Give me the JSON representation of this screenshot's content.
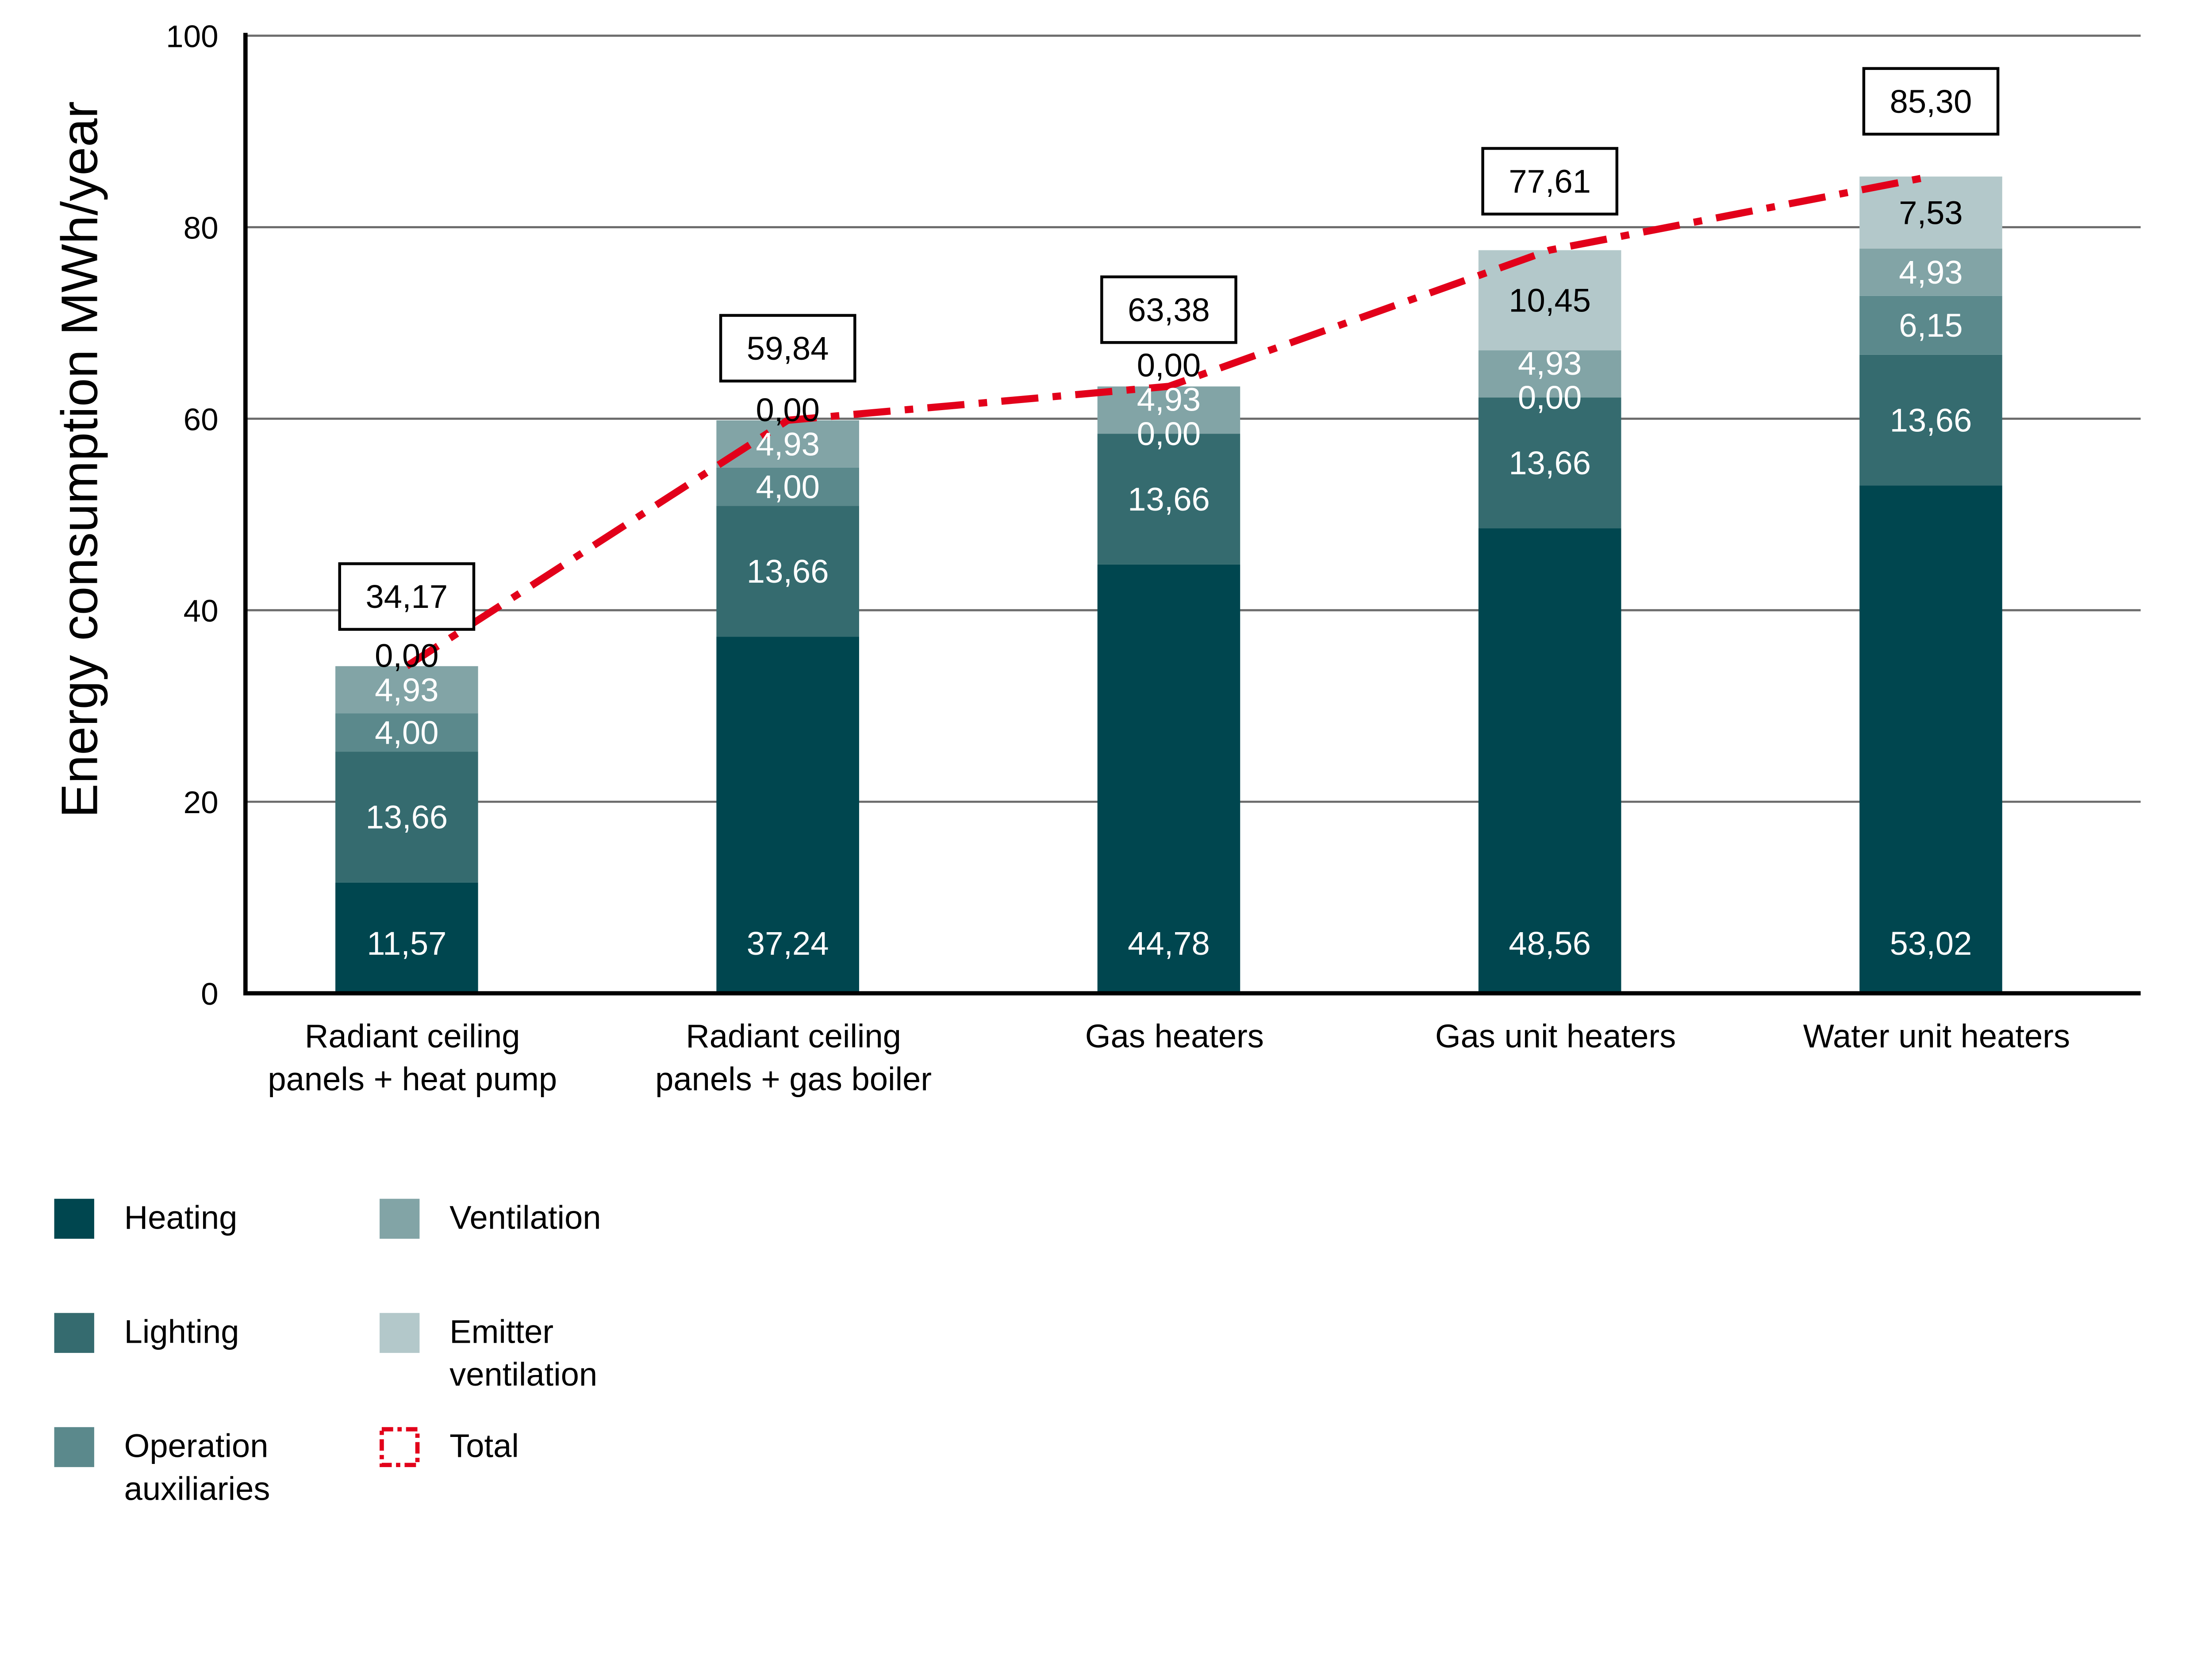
{
  "chart_data": {
    "type": "bar",
    "stacked": true,
    "title": "",
    "xlabel": "",
    "ylabel": "Energy consumption MWh/year",
    "ylim": [
      0,
      100
    ],
    "yticks": [
      0,
      20,
      40,
      60,
      80,
      100
    ],
    "grid": true,
    "legend_position": "bottom-left",
    "categories": [
      [
        "Radiant ceiling",
        "panels + heat pump"
      ],
      [
        "Radiant ceiling",
        "panels + gas boiler"
      ],
      [
        "Gas heaters"
      ],
      [
        "Gas unit heaters"
      ],
      [
        "Water unit heaters"
      ]
    ],
    "series": [
      {
        "name": "Heating",
        "legend": [
          "Heating"
        ],
        "color": "#00464f",
        "label_color": "#ffffff",
        "values": [
          11.57,
          37.24,
          44.78,
          48.56,
          53.02
        ],
        "labels": [
          "11,57",
          "37,24",
          "44,78",
          "48,56",
          "53,02"
        ]
      },
      {
        "name": "Lighting",
        "legend": [
          "Lighting"
        ],
        "color": "#356b6f",
        "label_color": "#ffffff",
        "values": [
          13.66,
          13.66,
          13.66,
          13.66,
          13.66
        ],
        "labels": [
          "13,66",
          "13,66",
          "13,66",
          "13,66",
          "13,66"
        ]
      },
      {
        "name": "Operation auxiliaries",
        "legend": [
          "Operation",
          "auxiliaries"
        ],
        "color": "#5b898c",
        "label_color": "#ffffff",
        "values": [
          4.0,
          4.0,
          0.0,
          0.0,
          6.15
        ],
        "labels": [
          "4,00",
          "4,00",
          "0,00",
          "0,00",
          "6,15"
        ]
      },
      {
        "name": "Ventilation",
        "legend": [
          "Ventilation"
        ],
        "color": "#82a4a6",
        "label_color": "#ffffff",
        "values": [
          4.93,
          4.93,
          4.93,
          4.93,
          4.93
        ],
        "labels": [
          "4,93",
          "4,93",
          "4,93",
          "4,93",
          "4,93"
        ]
      },
      {
        "name": "Emitter ventilation",
        "legend": [
          "Emitter",
          "ventilation"
        ],
        "color": "#b3c8ca",
        "label_color": "#000000",
        "values": [
          0.0,
          0.0,
          0.0,
          10.45,
          7.53
        ],
        "labels": [
          "0,00",
          "0,00",
          "0,00",
          "10,45",
          "7,53"
        ]
      }
    ],
    "total": {
      "name": "Total",
      "legend": [
        "Total"
      ],
      "color": "#e2001a",
      "style": "dash-dot",
      "values": [
        34.17,
        59.84,
        63.38,
        77.61,
        85.3
      ],
      "labels": [
        "34,17",
        "59,84",
        "63,38",
        "77,61",
        "85,30"
      ]
    }
  }
}
